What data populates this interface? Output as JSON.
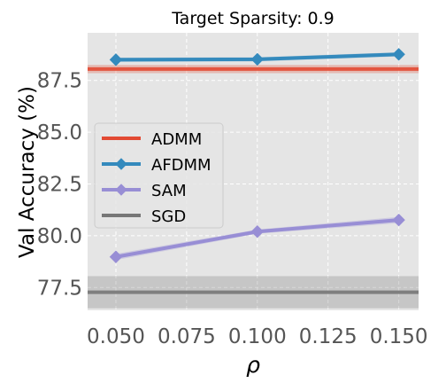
{
  "chart_data": {
    "type": "line",
    "title": "Target Sparsity: 0.9",
    "xlabel": "ρ",
    "ylabel": "Val Accuracy (%)",
    "x": [
      0.05,
      0.1,
      0.15
    ],
    "xlim": [
      0.04,
      0.157
    ],
    "ylim": [
      76.4,
      89.8
    ],
    "x_ticks": [
      0.05,
      0.075,
      0.1,
      0.125,
      0.15
    ],
    "x_tick_labels": [
      "0.050",
      "0.075",
      "0.100",
      "0.125",
      "0.150"
    ],
    "y_ticks": [
      77.5,
      80.0,
      82.5,
      85.0,
      87.5
    ],
    "y_tick_labels": [
      "77.5",
      "80.0",
      "82.5",
      "85.0",
      "87.5"
    ],
    "grid": true,
    "legend_position": "center-left",
    "series": [
      {
        "name": "ADMM",
        "kind": "hline",
        "value": 88.05,
        "band": [
          87.85,
          88.25
        ],
        "color": "#e24a33",
        "marker": "none"
      },
      {
        "name": "AFDMM",
        "kind": "line",
        "values": [
          88.5,
          88.52,
          88.76
        ],
        "band": [
          0.1,
          0.1,
          0.1
        ],
        "color": "#348abd",
        "marker": "diamond"
      },
      {
        "name": "SAM",
        "kind": "line",
        "values": [
          78.98,
          80.2,
          80.76
        ],
        "band": [
          0.15,
          0.1,
          0.15
        ],
        "color": "#988ed5",
        "marker": "diamond"
      },
      {
        "name": "SGD",
        "kind": "hline",
        "value": 77.27,
        "band": [
          76.5,
          78.05
        ],
        "color": "#777777",
        "marker": "none"
      }
    ]
  }
}
